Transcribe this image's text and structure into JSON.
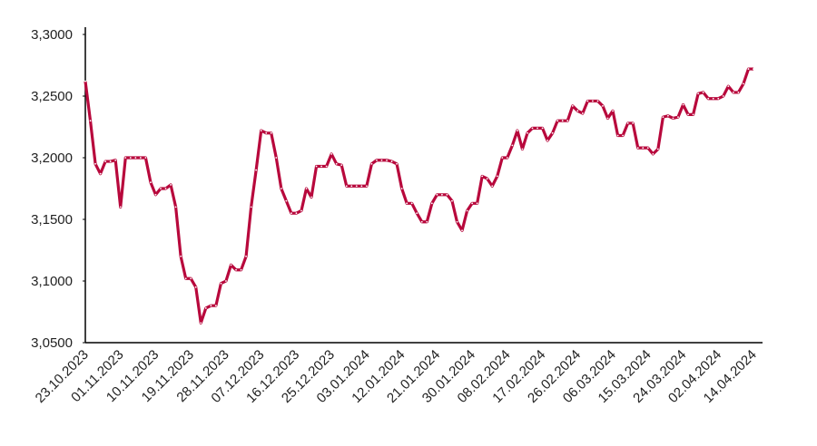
{
  "chart_data": {
    "type": "line",
    "categories": [
      "23.10.2023",
      null,
      null,
      null,
      null,
      null,
      null,
      "01.11.2023",
      null,
      null,
      null,
      null,
      null,
      null,
      "10.11.2023",
      null,
      null,
      null,
      null,
      null,
      null,
      "19.11.2023",
      null,
      null,
      null,
      null,
      null,
      null,
      "28.11.2023",
      null,
      null,
      null,
      null,
      null,
      null,
      "07.12.2023",
      null,
      null,
      null,
      null,
      null,
      null,
      "16.12.2023",
      null,
      null,
      null,
      null,
      null,
      null,
      "25.12.2023",
      null,
      null,
      null,
      null,
      null,
      null,
      "03.01.2024",
      null,
      null,
      null,
      null,
      null,
      null,
      "12.01.2024",
      null,
      null,
      null,
      null,
      null,
      null,
      "21.01.2024",
      null,
      null,
      null,
      null,
      null,
      null,
      "30.01.2024",
      null,
      null,
      null,
      null,
      null,
      null,
      "08.02.2024",
      null,
      null,
      null,
      null,
      null,
      null,
      "17.02.2024",
      null,
      null,
      null,
      null,
      null,
      null,
      "26.02.2024",
      null,
      null,
      null,
      null,
      null,
      null,
      "06.03.2024",
      null,
      null,
      null,
      null,
      null,
      null,
      "15.03.2024",
      null,
      null,
      null,
      null,
      null,
      null,
      "24.03.2024",
      null,
      null,
      null,
      null,
      null,
      null,
      "02.04.2024",
      null,
      null,
      null,
      null,
      null,
      null,
      "14.04.2024"
    ],
    "values": [
      3.262,
      3.23,
      3.195,
      3.187,
      3.197,
      3.197,
      3.198,
      3.16,
      3.2,
      3.2,
      3.2,
      3.2,
      3.2,
      3.18,
      3.17,
      3.175,
      3.175,
      3.178,
      3.16,
      3.12,
      3.102,
      3.102,
      3.095,
      3.066,
      3.078,
      3.08,
      3.08,
      3.098,
      3.1,
      3.113,
      3.109,
      3.109,
      3.12,
      3.16,
      3.19,
      3.222,
      3.22,
      3.22,
      3.2,
      3.175,
      3.165,
      3.155,
      3.155,
      3.157,
      3.175,
      3.168,
      3.193,
      3.193,
      3.193,
      3.203,
      3.195,
      3.194,
      3.177,
      3.177,
      3.177,
      3.177,
      3.177,
      3.195,
      3.198,
      3.198,
      3.198,
      3.197,
      3.195,
      3.175,
      3.163,
      3.163,
      3.155,
      3.148,
      3.148,
      3.163,
      3.17,
      3.17,
      3.17,
      3.165,
      3.148,
      3.141,
      3.157,
      3.163,
      3.163,
      3.185,
      3.183,
      3.177,
      3.185,
      3.2,
      3.2,
      3.21,
      3.222,
      3.207,
      3.22,
      3.224,
      3.224,
      3.224,
      3.214,
      3.22,
      3.23,
      3.23,
      3.23,
      3.242,
      3.238,
      3.236,
      3.246,
      3.246,
      3.246,
      3.242,
      3.232,
      3.238,
      3.218,
      3.218,
      3.228,
      3.228,
      3.208,
      3.208,
      3.208,
      3.203,
      3.207,
      3.233,
      3.234,
      3.232,
      3.233,
      3.243,
      3.235,
      3.235,
      3.252,
      3.253,
      3.248,
      3.248,
      3.248,
      3.25,
      3.258,
      3.253,
      3.253,
      3.26,
      3.272,
      3.272
    ],
    "color": "#b8083c",
    "ylim": [
      3.05,
      3.3
    ],
    "yticks": [
      {
        "value": 3.05,
        "label": "3,0500"
      },
      {
        "value": 3.1,
        "label": "3,1000"
      },
      {
        "value": 3.15,
        "label": "3,1500"
      },
      {
        "value": 3.2,
        "label": "3,2000"
      },
      {
        "value": 3.25,
        "label": "3,2500"
      },
      {
        "value": 3.3,
        "label": "3,3000"
      }
    ],
    "grid": false
  }
}
